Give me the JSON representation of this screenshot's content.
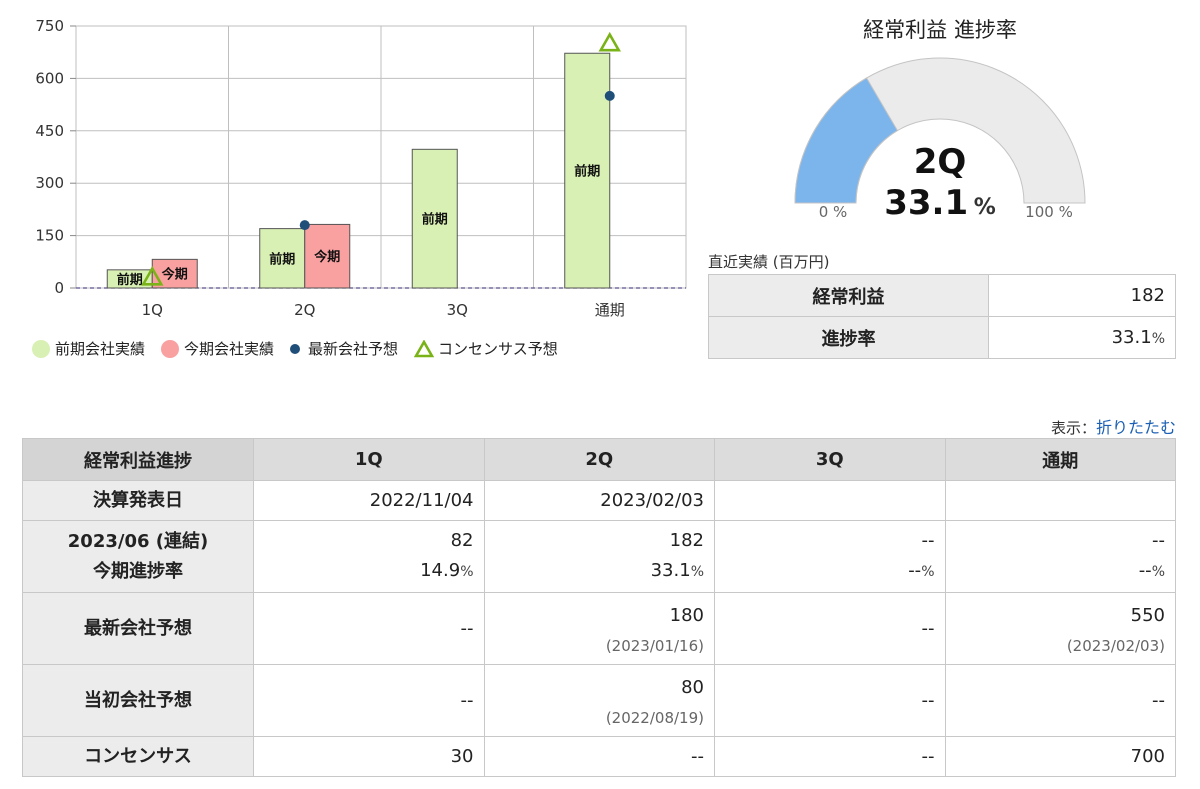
{
  "chart_data": [
    {
      "type": "bar",
      "categories": [
        "1Q",
        "2Q",
        "3Q",
        "通期"
      ],
      "series": [
        {
          "name": "前期会社実績",
          "values": [
            52,
            170,
            397,
            672
          ],
          "color": "#d9f0b4",
          "bar_label": "前期"
        },
        {
          "name": "今期会社実績",
          "values": [
            82,
            182,
            null,
            null
          ],
          "color": "#f9a0a0",
          "bar_label": "今期"
        },
        {
          "name": "最新会社予想",
          "values": [
            null,
            180,
            null,
            550
          ],
          "color": "#1f4e79",
          "marker": "circle"
        },
        {
          "name": "コンセンサス予想",
          "values": [
            30,
            null,
            null,
            700
          ],
          "color": "#7ab317",
          "marker": "triangle"
        }
      ],
      "ylim": [
        0,
        750
      ],
      "yticks": [
        0,
        150,
        300,
        450,
        600,
        750
      ],
      "grid": true,
      "legend_position": "bottom"
    },
    {
      "type": "gauge",
      "title": "経常利益 進捗率",
      "quarter": "2Q",
      "value": 33.1,
      "value_text": "33.1",
      "unit": "%",
      "min_label": "0 %",
      "max_label": "100 %",
      "fill_color": "#7cb5ec",
      "track_color": "#ebebeb"
    }
  ],
  "legend": {
    "prev": "前期会社実績",
    "curr": "今期会社実績",
    "latest": "最新会社予想",
    "consensus": "コンセンサス予想"
  },
  "recent": {
    "caption": "直近実績 (百万円)",
    "rows": [
      {
        "label": "経常利益",
        "value": "182",
        "unit": ""
      },
      {
        "label": "進捗率",
        "value": "33.1",
        "unit": "%"
      }
    ]
  },
  "display_toggle": {
    "label": "表示：",
    "link": "折りたたむ"
  },
  "table": {
    "headers": [
      "経常利益進捗",
      "1Q",
      "2Q",
      "3Q",
      "通期"
    ],
    "row_date": {
      "label": "決算発表日",
      "values": [
        "2022/11/04",
        "2023/02/03",
        "",
        ""
      ]
    },
    "row_actual": {
      "label1": "2023/06 (連結)",
      "label2": "今期進捗率",
      "values": [
        "82",
        "182",
        "--",
        "--"
      ],
      "rates": [
        "14.9",
        "33.1",
        "--",
        "--"
      ],
      "rate_unit": "%"
    },
    "row_latest": {
      "label": "最新会社予想",
      "values": [
        "--",
        "180",
        "--",
        "550"
      ],
      "dates": [
        "",
        "(2023/01/16)",
        "",
        "(2023/02/03)"
      ]
    },
    "row_initial": {
      "label": "当初会社予想",
      "values": [
        "--",
        "80",
        "--",
        "--"
      ],
      "dates": [
        "",
        "(2022/08/19)",
        "",
        ""
      ]
    },
    "row_consensus": {
      "label": "コンセンサス",
      "values": [
        "30",
        "--",
        "--",
        "700"
      ]
    }
  }
}
